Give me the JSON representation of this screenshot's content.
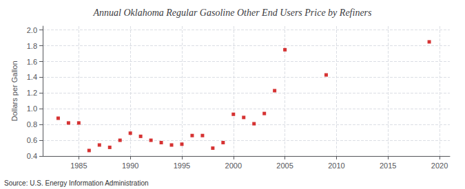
{
  "chart_data": {
    "type": "scatter",
    "title": "Annual Oklahoma Regular Gasoline Other End Users Price by Refiners",
    "ylabel": "Dollars per Gallon",
    "annotation": "Source: U.S. Energy Information Administration",
    "color": "#cc0000",
    "marker": "square",
    "grid": true,
    "xlim": [
      1981.5,
      2021
    ],
    "ylim": [
      0.4,
      2.05
    ],
    "xticks": [
      1985,
      1990,
      1995,
      2000,
      2005,
      2010,
      2015,
      2020
    ],
    "yticks": [
      0.4,
      0.6,
      0.8,
      {
        "value": 1.0,
        "label": "1.0"
      },
      1.2,
      1.4,
      1.6,
      1.8,
      {
        "value": 2.0,
        "label": "2.0"
      }
    ],
    "x": [
      1983,
      1984,
      1985,
      1986,
      1987,
      1988,
      1989,
      1990,
      1991,
      1992,
      1993,
      1994,
      1995,
      1996,
      1997,
      1998,
      1999,
      2000,
      2001,
      2002,
      2003,
      2004,
      2005,
      2009,
      2019
    ],
    "values": [
      0.88,
      0.82,
      0.82,
      0.47,
      0.54,
      0.51,
      0.6,
      0.69,
      0.65,
      0.6,
      0.57,
      0.54,
      0.55,
      0.66,
      0.66,
      0.5,
      0.57,
      0.93,
      0.89,
      0.81,
      0.94,
      1.23,
      1.75,
      1.43,
      1.85
    ]
  }
}
